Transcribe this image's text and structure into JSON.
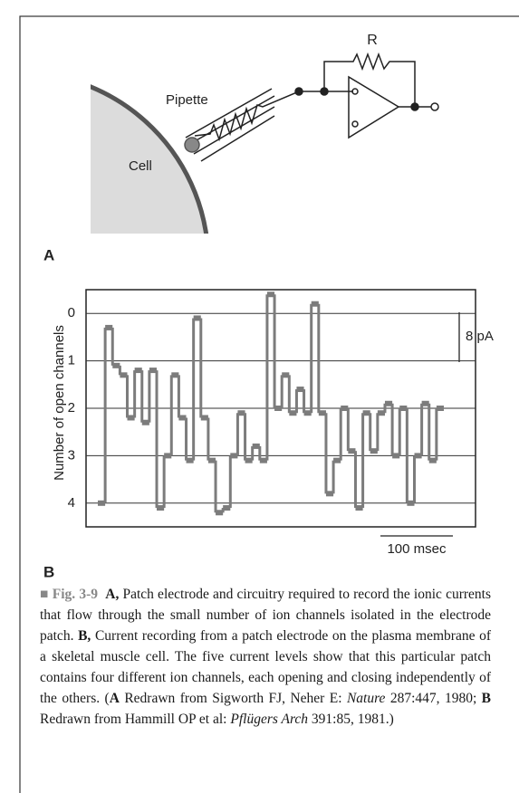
{
  "diagram": {
    "resistor_label": "R",
    "pipette_label": "Pipette",
    "cell_label": "Cell",
    "panel_label": "A"
  },
  "chart_data": {
    "type": "line",
    "panel_label": "B",
    "ylabel": "Number of open channels",
    "ylim": [
      4.5,
      -0.5
    ],
    "yticks": [
      0,
      1,
      2,
      3,
      4
    ],
    "grid": true,
    "color": "#7c7c7c",
    "scale_bar_y": "8 pA",
    "scale_bar_x": "100 msec",
    "values": [
      4,
      0.3,
      1.1,
      1.3,
      2.2,
      1.2,
      2.3,
      1.2,
      4.1,
      3.0,
      1.3,
      2.2,
      3.1,
      0.1,
      2.2,
      3.1,
      4.2,
      4.1,
      3.0,
      2.1,
      3.1,
      2.8,
      3.1,
      -0.4,
      2.0,
      1.3,
      2.1,
      1.6,
      2.1,
      -0.2,
      2.1,
      3.8,
      3.1,
      2.0,
      2.9,
      4.1,
      2.1,
      2.9,
      2.1,
      1.9,
      3.0,
      2.0,
      4.0,
      3.0,
      1.9,
      3.1,
      2.0
    ]
  },
  "caption": {
    "segments": [
      "■",
      "Fig. 3-9",
      "A,",
      "Patch electrode and circuitry required to record the ionic currents that flow through the small number of ion channels isolated in the electrode patch.",
      "B,",
      "Current recording from a patch electrode on the plasma membrane of a skeletal muscle cell. The five current levels show that this particular patch contains four different ion channels, each opening and closing independently of the others. (",
      "A",
      "Redrawn from Sigworth FJ, Neher E:",
      "Nature",
      "287:447, 1980;",
      "B",
      "Redrawn from Hammill OP et al:",
      "Pflügers Arch",
      "391:85, 1981.)"
    ]
  }
}
